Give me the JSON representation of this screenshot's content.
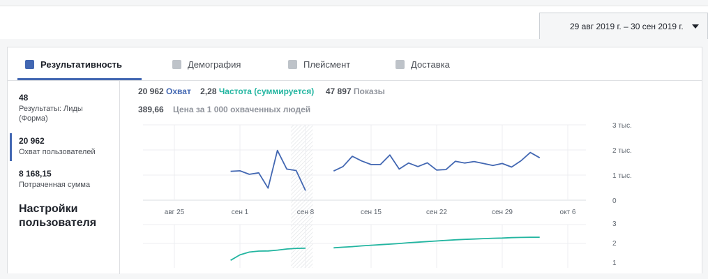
{
  "date_range": {
    "label": "29 авг 2019 г. – 30 сен 2019 г."
  },
  "tabs": [
    {
      "label": "Результативность",
      "icon": "bar-chart-icon",
      "active": true
    },
    {
      "label": "Демография",
      "icon": "people-icon",
      "active": false
    },
    {
      "label": "Плейсмент",
      "icon": "placement-icon",
      "active": false
    },
    {
      "label": "Доставка",
      "icon": "delivery-icon",
      "active": false
    }
  ],
  "sidebar": {
    "metrics": [
      {
        "value": "48",
        "label_line1": "Результаты: Лиды",
        "label_line2": "(Форма)"
      },
      {
        "value": "20 962",
        "label_line1": "Охват пользователей",
        "selected": true
      },
      {
        "value": "8 168,15",
        "label_line1": "Потраченная сумма"
      }
    ],
    "settings_line1": "Настройки",
    "settings_line2": "пользователя"
  },
  "summary": {
    "reach_value": "20 962",
    "reach_label": "Охват",
    "freq_value": "2,28",
    "freq_label": "Частота (суммируется)",
    "impr_value": "47 897",
    "impr_label": "Показы",
    "cost_value": "389,66",
    "cost_label": "Цена за 1 000 охваченных людей"
  },
  "colors": {
    "reach": "#4267b2",
    "frequency": "#22b5a0",
    "accent": "#4267b2"
  },
  "chart_data": [
    {
      "type": "line",
      "series": [
        {
          "name": "Охват",
          "x": [
            "2019-08-31",
            "2019-09-01",
            "2019-09-02",
            "2019-09-03",
            "2019-09-04",
            "2019-09-05",
            "2019-09-06",
            "2019-09-07",
            "2019-09-08",
            "2019-09-09",
            "2019-09-10",
            "2019-09-11",
            "2019-09-12",
            "2019-09-13",
            "2019-09-14",
            "2019-09-15",
            "2019-09-16",
            "2019-09-17",
            "2019-09-18",
            "2019-09-19",
            "2019-09-20",
            "2019-09-21",
            "2019-09-22",
            "2019-09-23",
            "2019-09-24",
            "2019-09-25",
            "2019-09-26",
            "2019-09-27",
            "2019-09-28",
            "2019-09-29",
            "2019-09-30",
            "2019-10-01",
            "2019-10-02",
            "2019-10-03"
          ],
          "values": [
            1150,
            1170,
            1030,
            1090,
            480,
            1980,
            1240,
            1180,
            380,
            null,
            null,
            1160,
            1340,
            1750,
            1560,
            1420,
            1420,
            1800,
            1240,
            1480,
            1340,
            1490,
            1200,
            1220,
            1550,
            1480,
            1540,
            1460,
            1380,
            1460,
            1320,
            1570,
            1900,
            1690
          ]
        }
      ],
      "x_ticks": [
        "авг 25",
        "сен 1",
        "сен 8",
        "сен 15",
        "сен 22",
        "сен 29",
        "окт 6"
      ],
      "y_ticks": [
        "0",
        "1 тыс.",
        "2 тыс.",
        "3 тыс."
      ],
      "ylim": [
        0,
        3000
      ],
      "grid": "horizontal and vertical",
      "shaded_gap": [
        "2019-09-06",
        "2019-09-09"
      ]
    },
    {
      "type": "line",
      "series": [
        {
          "name": "Частота (суммируется)",
          "x": [
            "2019-08-31",
            "2019-09-01",
            "2019-09-02",
            "2019-09-03",
            "2019-09-04",
            "2019-09-05",
            "2019-09-06",
            "2019-09-07",
            "2019-09-08",
            "2019-09-09",
            "2019-09-10",
            "2019-09-11",
            "2019-09-12",
            "2019-09-13",
            "2019-09-14",
            "2019-09-15",
            "2019-09-16",
            "2019-09-17",
            "2019-09-18",
            "2019-09-19",
            "2019-09-20",
            "2019-09-21",
            "2019-09-22",
            "2019-09-23",
            "2019-09-24",
            "2019-09-25",
            "2019-09-26",
            "2019-09-27",
            "2019-09-28",
            "2019-09-29",
            "2019-09-30",
            "2019-10-01",
            "2019-10-02",
            "2019-10-03"
          ],
          "values": [
            1.1,
            1.38,
            1.52,
            1.57,
            1.58,
            1.62,
            1.68,
            1.71,
            1.72,
            null,
            null,
            1.74,
            1.77,
            1.8,
            1.84,
            1.87,
            1.9,
            1.93,
            1.96,
            2.0,
            2.03,
            2.06,
            2.09,
            2.12,
            2.15,
            2.17,
            2.19,
            2.21,
            2.23,
            2.24,
            2.26,
            2.27,
            2.28,
            2.28
          ]
        }
      ],
      "y_ticks": [
        "1",
        "2",
        "3"
      ],
      "ylim": [
        1,
        3
      ]
    }
  ]
}
